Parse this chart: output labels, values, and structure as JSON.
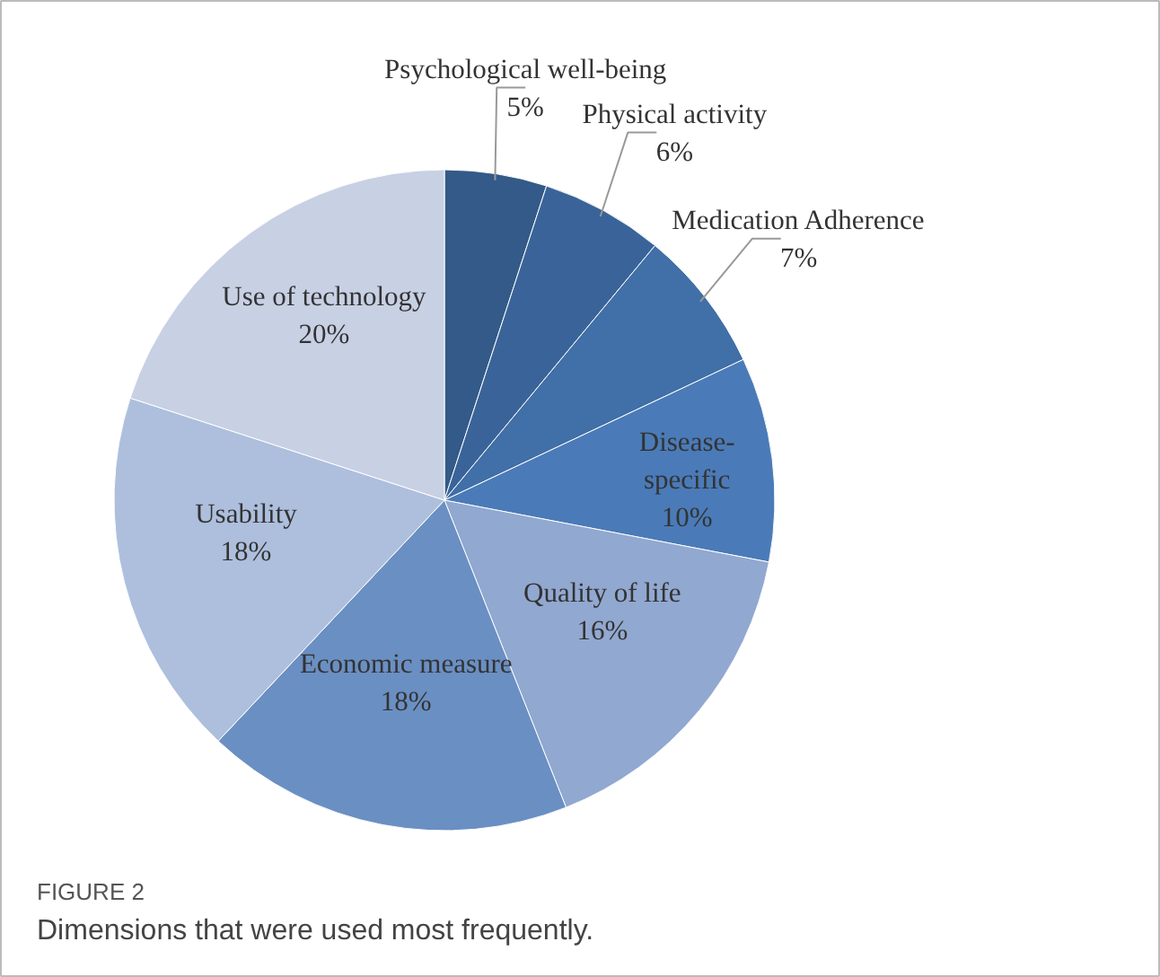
{
  "chart_data": {
    "type": "pie",
    "categories": [
      "Psychological well-being",
      "Physical activity",
      "Medication Adherence",
      "Disease-specific",
      "Quality of life",
      "Economic measure",
      "Usability",
      "Use of technology"
    ],
    "values": [
      5,
      6,
      7,
      10,
      16,
      18,
      18,
      20
    ],
    "value_labels": [
      "5%",
      "6%",
      "7%",
      "10%",
      "16%",
      "18%",
      "18%",
      "20%"
    ],
    "colors": [
      "#335a88",
      "#3a6499",
      "#416fa7",
      "#4a7bb8",
      "#91a8d0",
      "#6a8fc3",
      "#adbfdd",
      "#c8d0e4"
    ],
    "annotations": [
      "FIGURE 2",
      "Dimensions that were used most frequently."
    ]
  }
}
